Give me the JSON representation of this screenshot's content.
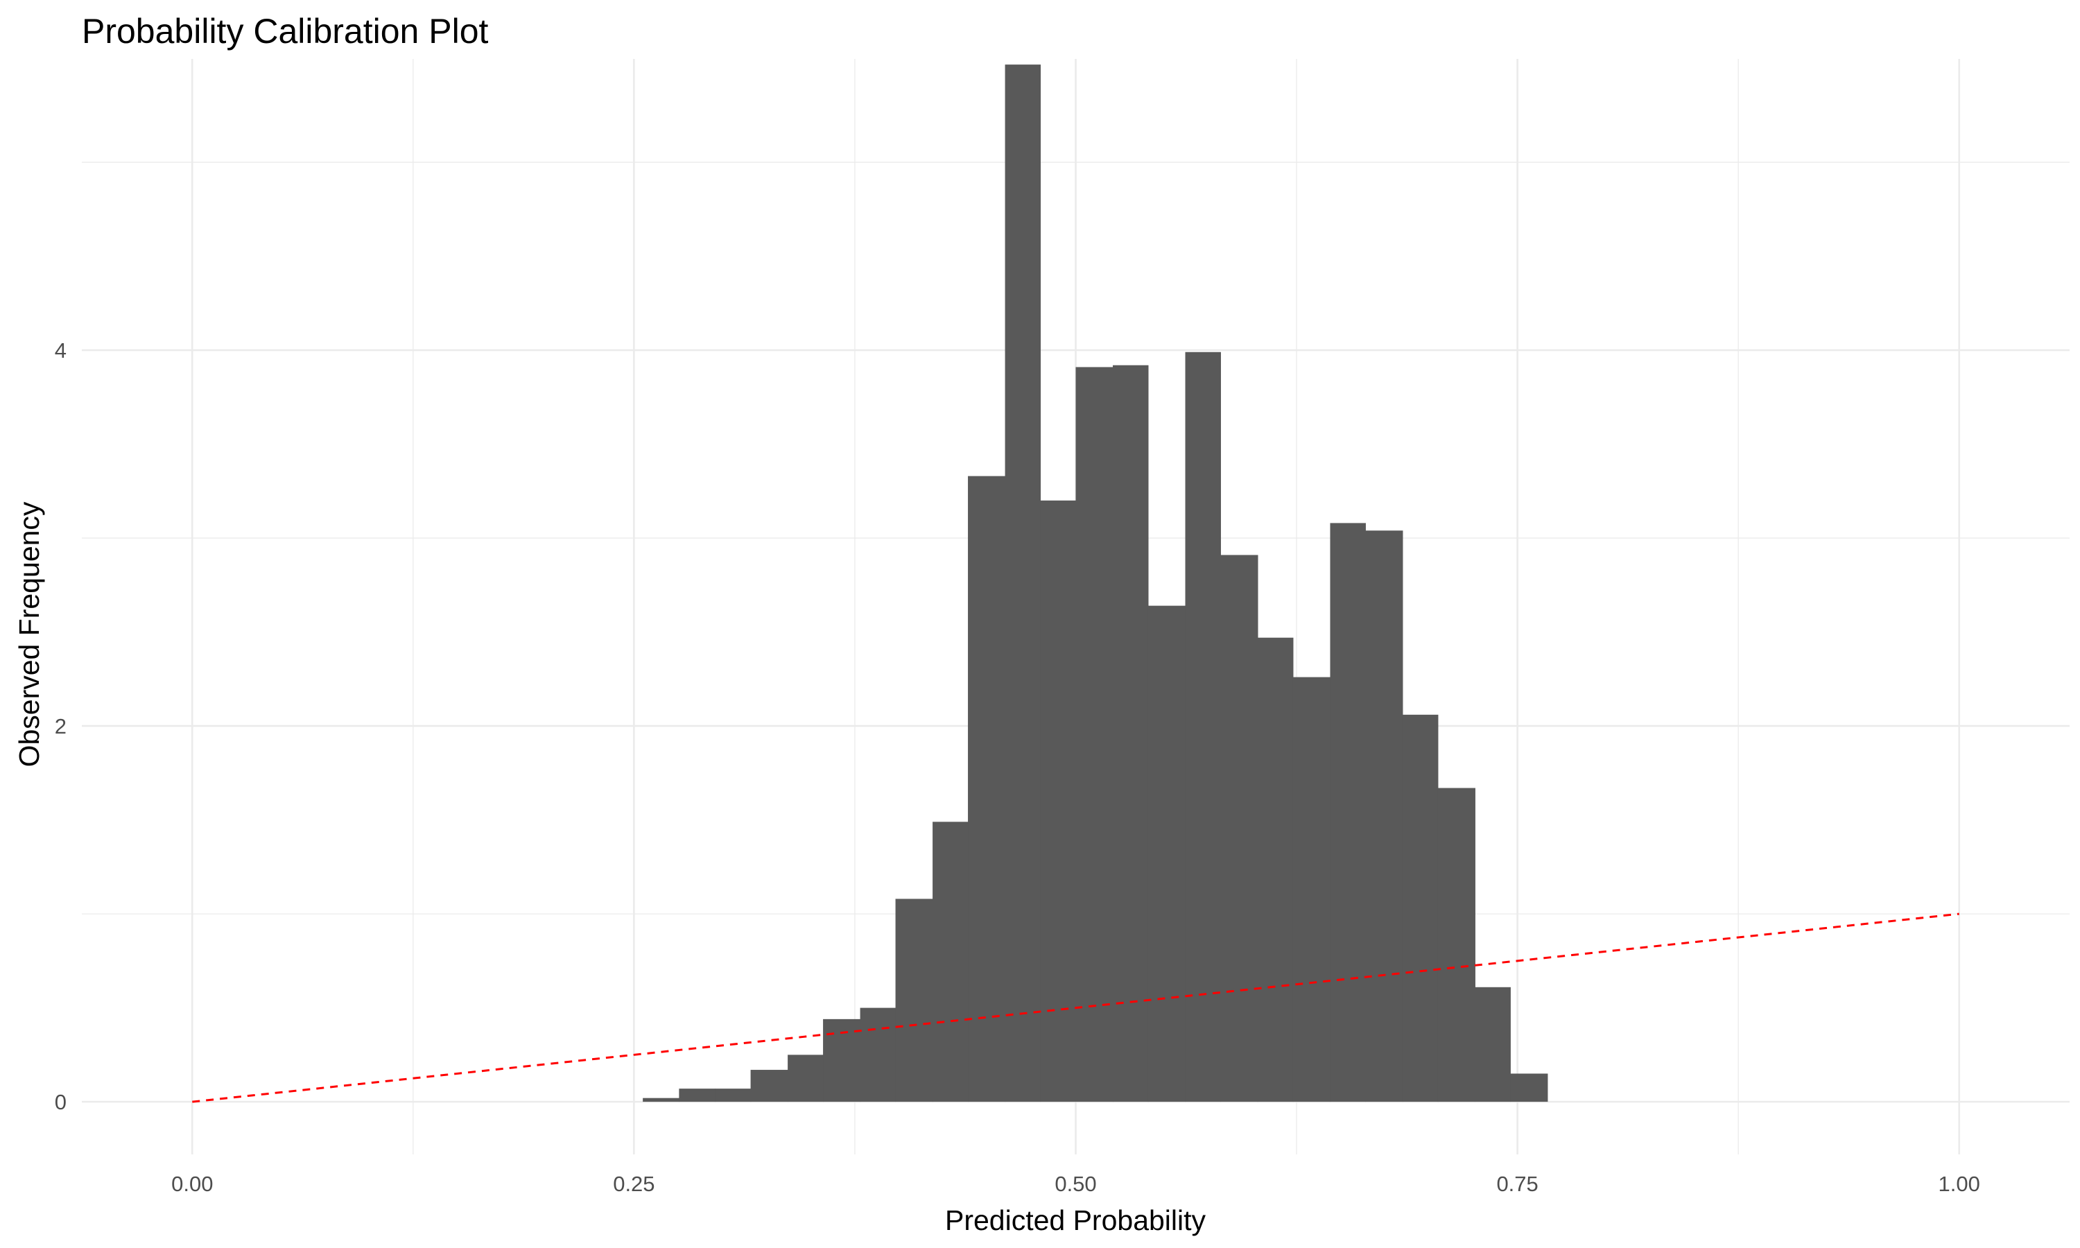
{
  "chart_data": {
    "type": "bar",
    "title": "Probability Calibration Plot",
    "xlabel": "Predicted Probability",
    "ylabel": "Observed Frequency",
    "xlim": [
      -0.0625,
      1.0625
    ],
    "ylim": [
      -0.28,
      5.55
    ],
    "x_ticks": [
      0.0,
      0.25,
      0.5,
      0.75,
      1.0
    ],
    "x_tick_labels": [
      "0.00",
      "0.25",
      "0.50",
      "0.75",
      "1.00"
    ],
    "y_ticks": [
      0,
      2,
      4
    ],
    "y_tick_labels": [
      "0",
      "2",
      "4"
    ],
    "grid": true,
    "bin_width": 0.0204,
    "bins": [
      {
        "x0": 0.255,
        "x1": 0.2755,
        "value": 0.02
      },
      {
        "x0": 0.2755,
        "x1": 0.296,
        "value": 0.07
      },
      {
        "x0": 0.296,
        "x1": 0.316,
        "value": 0.07
      },
      {
        "x0": 0.316,
        "x1": 0.337,
        "value": 0.17
      },
      {
        "x0": 0.337,
        "x1": 0.357,
        "value": 0.25
      },
      {
        "x0": 0.357,
        "x1": 0.378,
        "value": 0.44
      },
      {
        "x0": 0.378,
        "x1": 0.398,
        "value": 0.5
      },
      {
        "x0": 0.398,
        "x1": 0.419,
        "value": 1.08
      },
      {
        "x0": 0.419,
        "x1": 0.439,
        "value": 1.49
      },
      {
        "x0": 0.439,
        "x1": 0.46,
        "value": 3.33
      },
      {
        "x0": 0.46,
        "x1": 0.48,
        "value": 5.52
      },
      {
        "x0": 0.48,
        "x1": 0.5,
        "value": 3.2
      },
      {
        "x0": 0.5,
        "x1": 0.521,
        "value": 3.91
      },
      {
        "x0": 0.521,
        "x1": 0.541,
        "value": 3.92
      },
      {
        "x0": 0.541,
        "x1": 0.562,
        "value": 2.64
      },
      {
        "x0": 0.562,
        "x1": 0.582,
        "value": 3.99
      },
      {
        "x0": 0.582,
        "x1": 0.603,
        "value": 2.91
      },
      {
        "x0": 0.603,
        "x1": 0.623,
        "value": 2.47
      },
      {
        "x0": 0.623,
        "x1": 0.644,
        "value": 2.26
      },
      {
        "x0": 0.644,
        "x1": 0.664,
        "value": 3.08
      },
      {
        "x0": 0.664,
        "x1": 0.685,
        "value": 3.04
      },
      {
        "x0": 0.685,
        "x1": 0.705,
        "value": 2.06
      },
      {
        "x0": 0.705,
        "x1": 0.726,
        "value": 1.67
      },
      {
        "x0": 0.726,
        "x1": 0.746,
        "value": 0.61
      },
      {
        "x0": 0.746,
        "x1": 0.767,
        "value": 0.15
      }
    ],
    "reference_line": {
      "x": [
        0,
        1
      ],
      "y": [
        0,
        1
      ],
      "style": "dashed"
    },
    "colors": {
      "bar": "#595959",
      "reference_line": "#ff0000",
      "grid": "#ebebeb",
      "background": "#ffffff"
    }
  }
}
